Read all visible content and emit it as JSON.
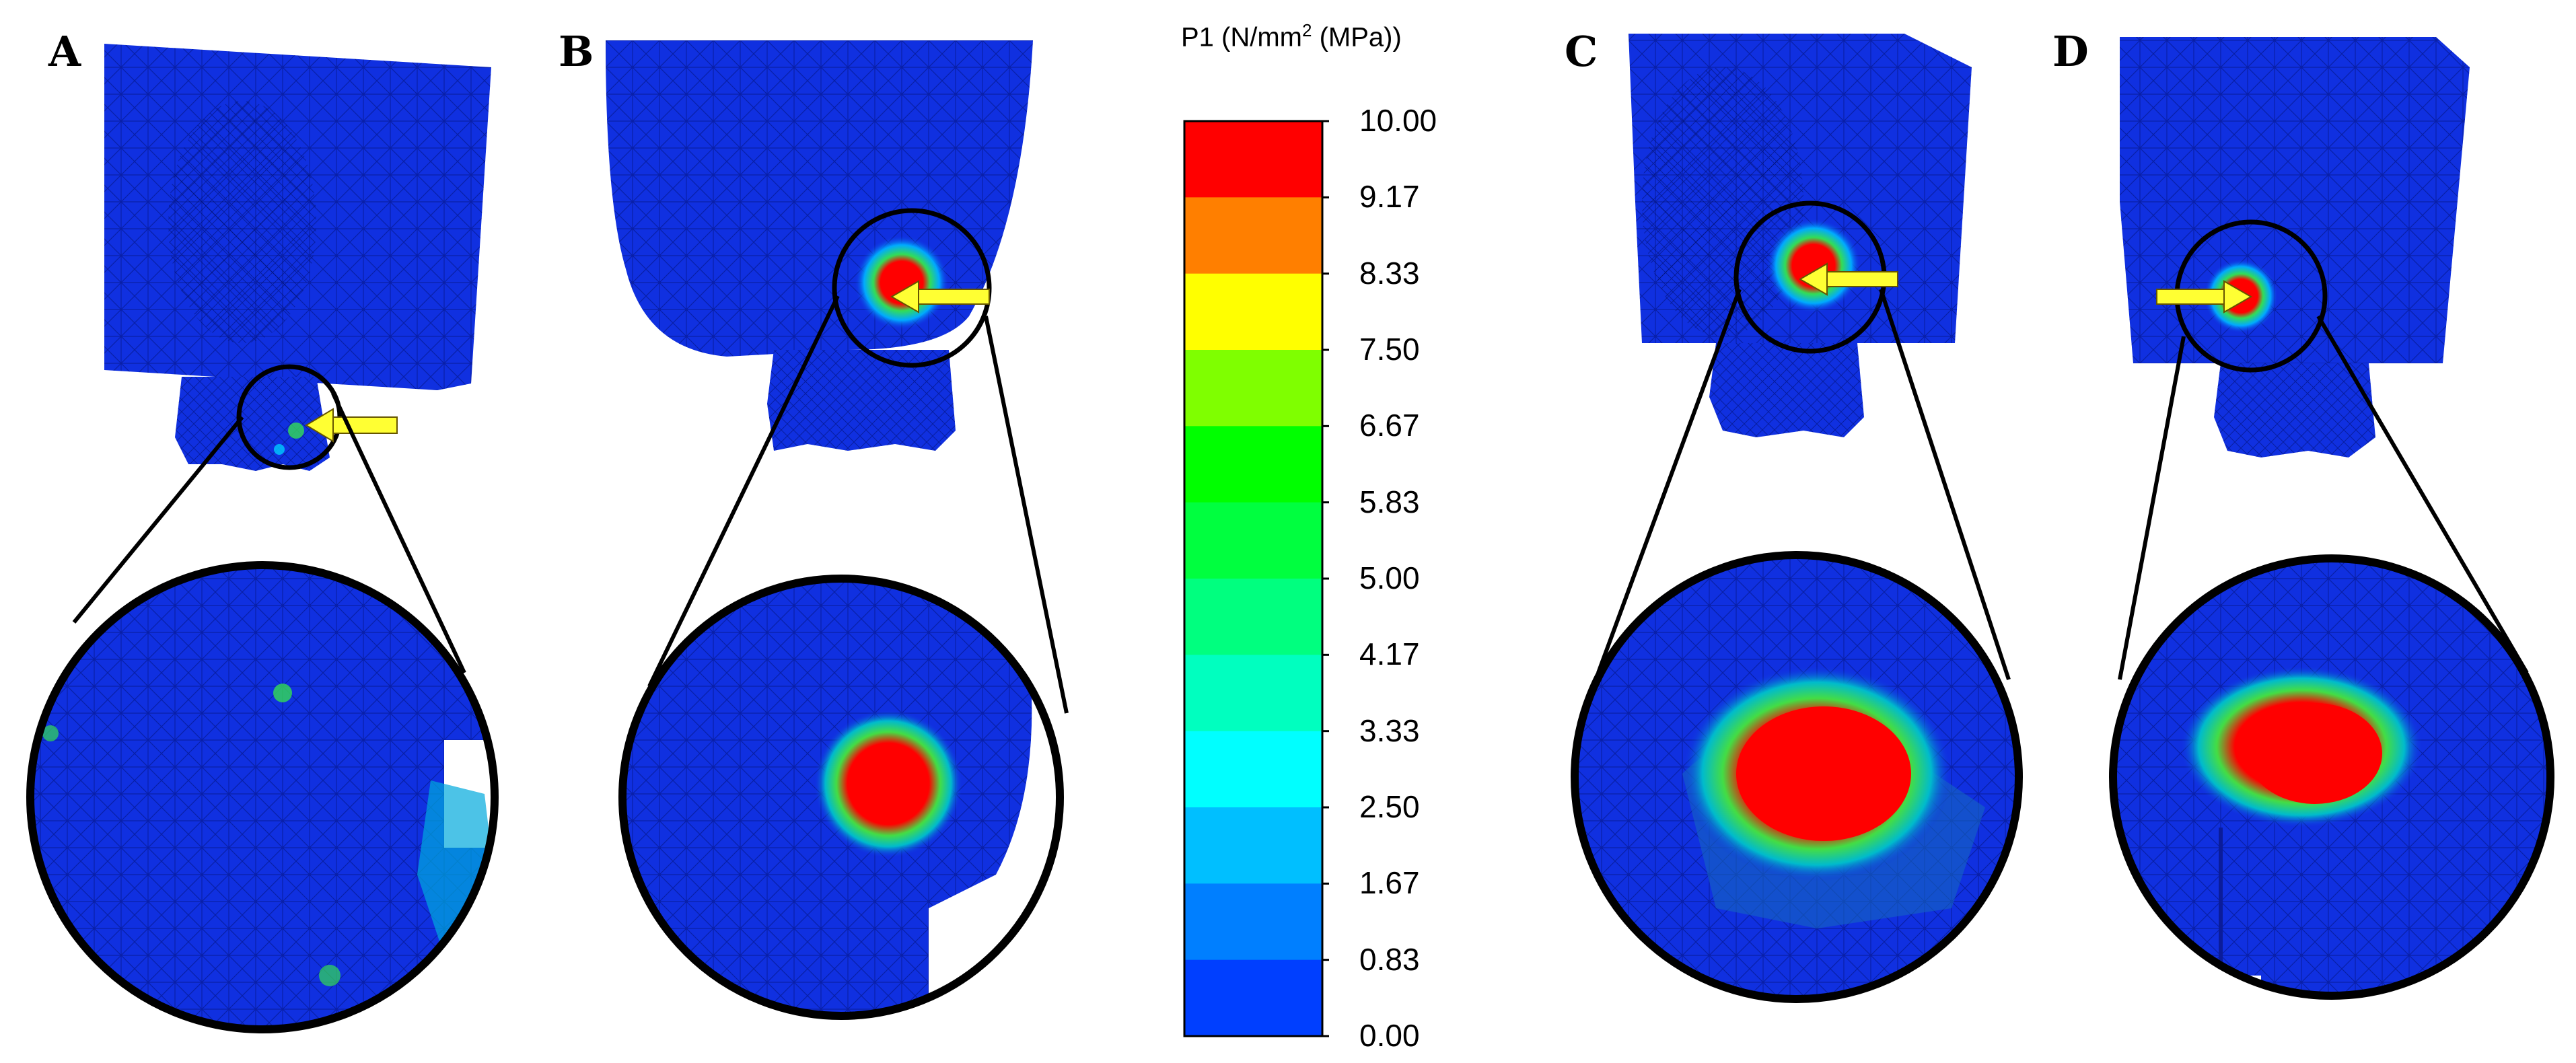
{
  "panels": [
    {
      "label": "A"
    },
    {
      "label": "B"
    },
    {
      "label": "C"
    },
    {
      "label": "D"
    }
  ],
  "color_scale": {
    "title": "P1 (N/mm",
    "title_sup": "2",
    "title_suffix": " (MPa))",
    "ticks": [
      "10.00",
      "9.17",
      "8.33",
      "7.50",
      "6.67",
      "5.83",
      "5.00",
      "4.17",
      "3.33",
      "2.50",
      "1.67",
      "0.83",
      "0.00"
    ],
    "colors_top_to_bottom": [
      "#ff0000",
      "#ff7f00",
      "#ffff00",
      "#7fff00",
      "#00ff00",
      "#00ff3f",
      "#00ff7f",
      "#00ffbf",
      "#00ffff",
      "#00bfff",
      "#007fff",
      "#003fff"
    ]
  },
  "colors": {
    "model_blue": "#1030e0",
    "arrow_yellow": "#ffff33",
    "stress_red": "#ff0000",
    "stress_green": "#33dd55"
  }
}
